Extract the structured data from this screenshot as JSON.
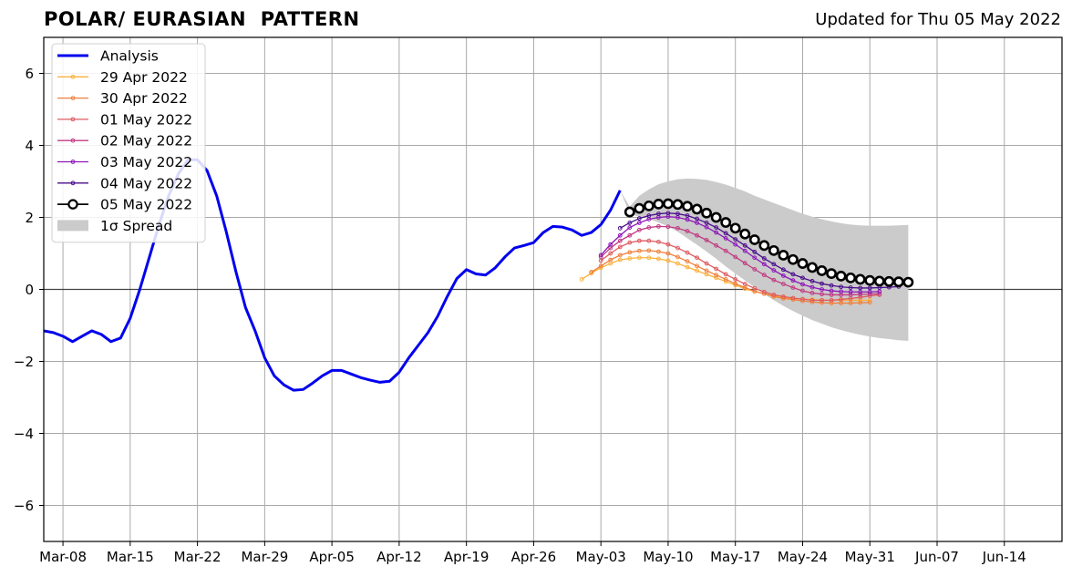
{
  "chart_data": {
    "type": "line",
    "title": "POLAR/ EURASIAN  PATTERN",
    "subtitle": "Updated for Thu 05 May 2022",
    "xlabel": "",
    "ylabel": "",
    "x_start_date": "2022-03-06",
    "xlim": [
      "2022-03-06",
      "2022-06-20"
    ],
    "ylim": [
      -7,
      7
    ],
    "grid": true,
    "legend_position": "top-left",
    "x_ticks": [
      {
        "date": "2022-03-08",
        "label": "Mar-08"
      },
      {
        "date": "2022-03-15",
        "label": "Mar-15"
      },
      {
        "date": "2022-03-22",
        "label": "Mar-22"
      },
      {
        "date": "2022-03-29",
        "label": "Mar-29"
      },
      {
        "date": "2022-04-05",
        "label": "Apr-05"
      },
      {
        "date": "2022-04-12",
        "label": "Apr-12"
      },
      {
        "date": "2022-04-19",
        "label": "Apr-19"
      },
      {
        "date": "2022-04-26",
        "label": "Apr-26"
      },
      {
        "date": "2022-05-03",
        "label": "May-03"
      },
      {
        "date": "2022-05-10",
        "label": "May-10"
      },
      {
        "date": "2022-05-17",
        "label": "May-17"
      },
      {
        "date": "2022-05-24",
        "label": "May-24"
      },
      {
        "date": "2022-05-31",
        "label": "May-31"
      },
      {
        "date": "2022-06-07",
        "label": "Jun-07"
      },
      {
        "date": "2022-06-14",
        "label": "Jun-14"
      }
    ],
    "y_ticks": [
      {
        "value": 6,
        "label": "6"
      },
      {
        "value": 4,
        "label": "4"
      },
      {
        "value": 2,
        "label": "2"
      },
      {
        "value": 0,
        "label": "0"
      },
      {
        "value": -2,
        "label": "−2"
      },
      {
        "value": -4,
        "label": "−4"
      },
      {
        "value": -6,
        "label": "−6"
      }
    ],
    "analysis": {
      "name": "Analysis",
      "color": "#0000ee",
      "start_date": "2022-03-06",
      "values": [
        -1.15,
        -1.2,
        -1.3,
        -1.45,
        -1.3,
        -1.15,
        -1.25,
        -1.45,
        -1.35,
        -0.8,
        0.0,
        0.9,
        1.8,
        2.6,
        3.2,
        3.6,
        3.6,
        3.3,
        2.6,
        1.6,
        0.5,
        -0.5,
        -1.15,
        -1.9,
        -2.4,
        -2.65,
        -2.8,
        -2.78,
        -2.6,
        -2.4,
        -2.25,
        -2.25,
        -2.35,
        -2.45,
        -2.52,
        -2.58,
        -2.55,
        -2.3,
        -1.9,
        -1.55,
        -1.2,
        -0.75,
        -0.2,
        0.3,
        0.55,
        0.43,
        0.4,
        0.6,
        0.9,
        1.15,
        1.22,
        1.3,
        1.58,
        1.75,
        1.73,
        1.65,
        1.5,
        1.58,
        1.8,
        2.2,
        2.75
      ]
    },
    "forecasts": [
      {
        "name": "29 Apr 2022",
        "color": "#fbb13c",
        "start_date": "2022-05-01",
        "values": [
          0.28,
          0.45,
          0.6,
          0.72,
          0.82,
          0.86,
          0.88,
          0.88,
          0.85,
          0.8,
          0.72,
          0.62,
          0.52,
          0.42,
          0.32,
          0.22,
          0.12,
          0.02,
          -0.06,
          -0.12,
          -0.18,
          -0.22,
          -0.25,
          -0.27,
          -0.28,
          -0.3,
          -0.3,
          -0.3,
          -0.3,
          -0.3,
          -0.3
        ]
      },
      {
        "name": "30 Apr 2022",
        "color": "#f07f3c",
        "start_date": "2022-05-02",
        "values": [
          0.48,
          0.65,
          0.82,
          0.95,
          1.03,
          1.07,
          1.08,
          1.05,
          1.0,
          0.9,
          0.78,
          0.65,
          0.52,
          0.4,
          0.28,
          0.16,
          0.05,
          -0.05,
          -0.12,
          -0.2,
          -0.25,
          -0.28,
          -0.32,
          -0.35,
          -0.37,
          -0.38,
          -0.38,
          -0.38,
          -0.37,
          -0.36
        ]
      },
      {
        "name": "01 May 2022",
        "color": "#de5a5f",
        "start_date": "2022-05-03",
        "values": [
          0.8,
          1.0,
          1.18,
          1.3,
          1.35,
          1.35,
          1.32,
          1.25,
          1.15,
          1.02,
          0.88,
          0.72,
          0.57,
          0.42,
          0.28,
          0.15,
          0.03,
          -0.07,
          -0.15,
          -0.2,
          -0.24,
          -0.27,
          -0.3,
          -0.3,
          -0.3,
          -0.28,
          -0.25,
          -0.22,
          -0.18,
          -0.15
        ]
      },
      {
        "name": "02 May 2022",
        "color": "#c23b82",
        "start_date": "2022-05-03",
        "values": [
          0.9,
          1.15,
          1.35,
          1.5,
          1.65,
          1.72,
          1.75,
          1.74,
          1.7,
          1.62,
          1.5,
          1.37,
          1.22,
          1.07,
          0.9,
          0.73,
          0.56,
          0.4,
          0.26,
          0.15,
          0.05,
          -0.04,
          -0.1,
          -0.13,
          -0.15,
          -0.15,
          -0.15,
          -0.14,
          -0.13,
          -0.12
        ]
      },
      {
        "name": "03 May 2022",
        "color": "#8e17b8",
        "start_date": "2022-05-03",
        "values": [
          0.95,
          1.25,
          1.5,
          1.72,
          1.85,
          1.95,
          2.0,
          2.02,
          2.0,
          1.94,
          1.85,
          1.73,
          1.58,
          1.42,
          1.25,
          1.07,
          0.88,
          0.7,
          0.53,
          0.38,
          0.25,
          0.14,
          0.06,
          0.0,
          -0.04,
          -0.06,
          -0.07,
          -0.07,
          -0.07,
          -0.06
        ]
      },
      {
        "name": "04 May 2022",
        "color": "#4b0d8c",
        "start_date": "2022-05-05",
        "values": [
          1.7,
          1.85,
          1.97,
          2.05,
          2.1,
          2.12,
          2.1,
          2.05,
          1.96,
          1.85,
          1.72,
          1.56,
          1.39,
          1.22,
          1.04,
          0.86,
          0.7,
          0.55,
          0.42,
          0.32,
          0.23,
          0.16,
          0.11,
          0.07,
          0.05,
          0.04,
          0.04,
          0.05,
          0.06,
          0.08
        ]
      },
      {
        "name": "05 May 2022",
        "color": "#000000",
        "start_date": "2022-05-06",
        "values": [
          2.15,
          2.25,
          2.32,
          2.37,
          2.38,
          2.36,
          2.31,
          2.23,
          2.12,
          2.0,
          1.86,
          1.7,
          1.54,
          1.38,
          1.22,
          1.08,
          0.95,
          0.83,
          0.72,
          0.61,
          0.52,
          0.44,
          0.37,
          0.32,
          0.28,
          0.25,
          0.23,
          0.22,
          0.21,
          0.2
        ]
      }
    ],
    "spread": {
      "name": "1σ Spread",
      "color": "#cbcbcb",
      "start_date": "2022-05-05",
      "upper": [
        2.75,
        2.3,
        2.6,
        2.78,
        2.92,
        3.0,
        3.06,
        3.08,
        3.07,
        3.04,
        2.98,
        2.91,
        2.82,
        2.72,
        2.6,
        2.5,
        2.4,
        2.3,
        2.2,
        2.1,
        2.02,
        1.95,
        1.89,
        1.84,
        1.8,
        1.78,
        1.77,
        1.77,
        1.77,
        1.78,
        1.79
      ],
      "lower": [
        2.75,
        2.1,
        2.02,
        1.96,
        1.86,
        1.75,
        1.6,
        1.42,
        1.24,
        1.05,
        0.85,
        0.64,
        0.44,
        0.25,
        0.06,
        -0.13,
        -0.3,
        -0.46,
        -0.6,
        -0.73,
        -0.85,
        -0.95,
        -1.05,
        -1.13,
        -1.2,
        -1.26,
        -1.31,
        -1.35,
        -1.38,
        -1.41,
        -1.43
      ]
    },
    "legend": [
      {
        "label": "Analysis",
        "kind": "thick-line",
        "color": "#0000ee"
      },
      {
        "label": "29 Apr 2022",
        "kind": "dot-line",
        "color": "#fbb13c"
      },
      {
        "label": "30 Apr 2022",
        "kind": "dot-line",
        "color": "#f07f3c"
      },
      {
        "label": "01 May 2022",
        "kind": "dot-line",
        "color": "#de5a5f"
      },
      {
        "label": "02 May 2022",
        "kind": "dot-line",
        "color": "#c23b82"
      },
      {
        "label": "03 May 2022",
        "kind": "dot-line",
        "color": "#8e17b8"
      },
      {
        "label": "04 May 2022",
        "kind": "dot-line",
        "color": "#4b0d8c"
      },
      {
        "label": "05 May 2022",
        "kind": "circle-line",
        "color": "#000000"
      },
      {
        "label": "1σ Spread",
        "kind": "patch",
        "color": "#cbcbcb"
      }
    ]
  }
}
